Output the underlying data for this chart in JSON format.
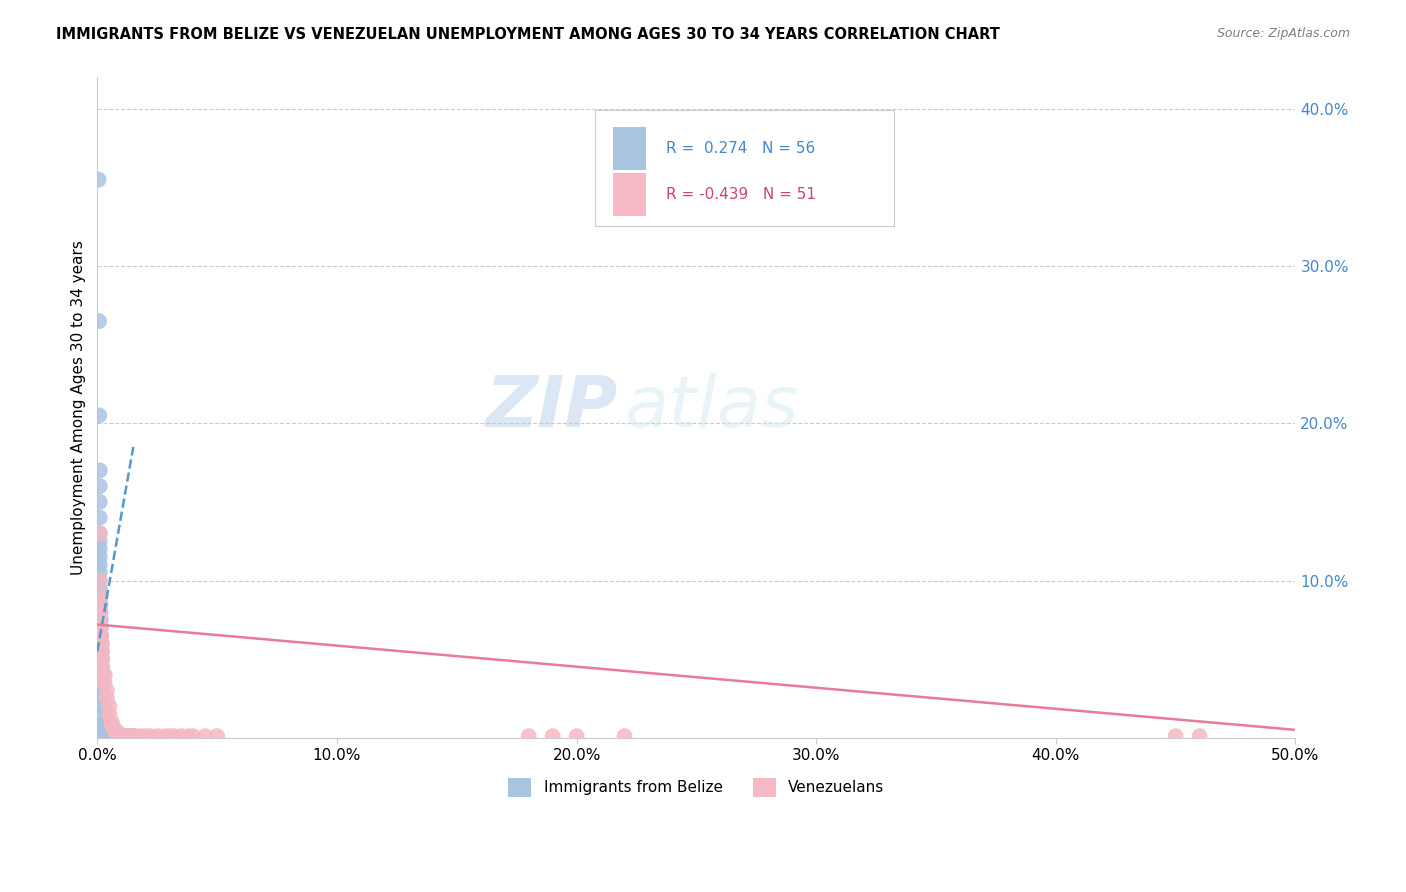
{
  "title": "IMMIGRANTS FROM BELIZE VS VENEZUELAN UNEMPLOYMENT AMONG AGES 30 TO 34 YEARS CORRELATION CHART",
  "source": "Source: ZipAtlas.com",
  "ylabel": "Unemployment Among Ages 30 to 34 years",
  "xlim": [
    0.0,
    0.5
  ],
  "ylim": [
    0.0,
    0.42
  ],
  "belize_R": 0.274,
  "belize_N": 56,
  "venezuela_R": -0.439,
  "venezuela_N": 51,
  "belize_color": "#a8c4e0",
  "venezuela_color": "#f5b8c4",
  "belize_line_color": "#5599cc",
  "venezuela_line_color": "#e87c96",
  "watermark_zip": "ZIP",
  "watermark_atlas": "atlas",
  "legend_labels": [
    "Immigrants from Belize",
    "Venezuelans"
  ],
  "belize_x": [
    0.0005,
    0.0007,
    0.0008,
    0.001,
    0.001,
    0.001,
    0.001,
    0.001,
    0.001,
    0.001,
    0.001,
    0.001,
    0.001,
    0.001,
    0.001,
    0.0012,
    0.0012,
    0.0013,
    0.0013,
    0.0015,
    0.0015,
    0.0015,
    0.0015,
    0.0016,
    0.0017,
    0.0018,
    0.002,
    0.002,
    0.002,
    0.002,
    0.002,
    0.002,
    0.0022,
    0.0023,
    0.0025,
    0.003,
    0.003,
    0.003,
    0.003,
    0.004,
    0.004,
    0.005,
    0.005,
    0.006,
    0.006,
    0.007,
    0.008,
    0.009,
    0.01,
    0.011,
    0.012,
    0.013,
    0.014,
    0.015,
    0.0008,
    0.001
  ],
  "belize_y": [
    0.355,
    0.265,
    0.205,
    0.17,
    0.16,
    0.15,
    0.14,
    0.13,
    0.125,
    0.12,
    0.115,
    0.11,
    0.105,
    0.1,
    0.095,
    0.09,
    0.085,
    0.085,
    0.08,
    0.075,
    0.07,
    0.065,
    0.065,
    0.06,
    0.055,
    0.05,
    0.05,
    0.045,
    0.04,
    0.04,
    0.035,
    0.03,
    0.025,
    0.02,
    0.015,
    0.01,
    0.008,
    0.006,
    0.005,
    0.004,
    0.003,
    0.002,
    0.002,
    0.001,
    0.001,
    0.001,
    0.001,
    0.001,
    0.001,
    0.001,
    0.001,
    0.001,
    0.001,
    0.001,
    0.001,
    0.001
  ],
  "venezuela_x": [
    0.001,
    0.001,
    0.001,
    0.001,
    0.001,
    0.0012,
    0.0013,
    0.0015,
    0.002,
    0.002,
    0.002,
    0.002,
    0.003,
    0.003,
    0.003,
    0.004,
    0.004,
    0.005,
    0.005,
    0.006,
    0.006,
    0.007,
    0.007,
    0.008,
    0.008,
    0.009,
    0.01,
    0.011,
    0.012,
    0.013,
    0.014,
    0.015,
    0.016,
    0.018,
    0.02,
    0.022,
    0.025,
    0.028,
    0.03,
    0.032,
    0.035,
    0.038,
    0.04,
    0.045,
    0.05,
    0.18,
    0.19,
    0.2,
    0.22,
    0.45,
    0.46
  ],
  "venezuela_y": [
    0.13,
    0.1,
    0.09,
    0.085,
    0.08,
    0.075,
    0.07,
    0.065,
    0.06,
    0.055,
    0.05,
    0.045,
    0.04,
    0.04,
    0.035,
    0.03,
    0.025,
    0.02,
    0.015,
    0.01,
    0.008,
    0.006,
    0.005,
    0.004,
    0.003,
    0.002,
    0.002,
    0.001,
    0.001,
    0.001,
    0.001,
    0.001,
    0.001,
    0.001,
    0.001,
    0.001,
    0.001,
    0.001,
    0.001,
    0.001,
    0.001,
    0.001,
    0.001,
    0.001,
    0.001,
    0.001,
    0.001,
    0.001,
    0.001,
    0.001,
    0.001
  ],
  "belize_trend_x": [
    0.0,
    0.015
  ],
  "belize_trend_y": [
    0.055,
    0.185
  ],
  "venezuela_trend_x": [
    0.0,
    0.5
  ],
  "venezuela_trend_y": [
    0.072,
    0.005
  ]
}
